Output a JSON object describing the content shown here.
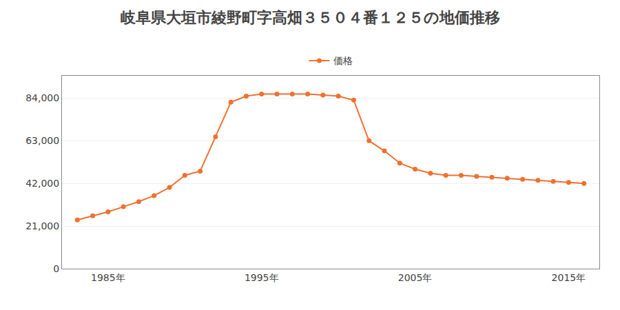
{
  "chart_data": {
    "type": "line",
    "title": "岐阜県大垣市綾野町字高畑３５０４番１２５の地価推移",
    "x": [
      1983,
      1984,
      1985,
      1986,
      1987,
      1988,
      1989,
      1990,
      1991,
      1992,
      1993,
      1994,
      1995,
      1996,
      1997,
      1998,
      1999,
      2000,
      2001,
      2002,
      2003,
      2004,
      2005,
      2006,
      2007,
      2008,
      2009,
      2010,
      2011,
      2012,
      2013,
      2014,
      2015,
      2016
    ],
    "series": [
      {
        "name": "価格",
        "color": "#f07030",
        "marker": "circle",
        "line_style": "solid",
        "values": [
          24000,
          26000,
          28000,
          30500,
          33000,
          36000,
          40000,
          46000,
          48000,
          65000,
          82000,
          85000,
          86000,
          86000,
          86000,
          86000,
          85500,
          85000,
          83000,
          63000,
          58000,
          52000,
          49000,
          47000,
          46000,
          46000,
          45500,
          45000,
          44500,
          44000,
          43500,
          43000,
          42500,
          42000
        ]
      }
    ],
    "xlim": [
      1982,
      2017
    ],
    "xticks": [
      {
        "value": 1985,
        "label": "1985年"
      },
      {
        "value": 1995,
        "label": "1995年"
      },
      {
        "value": 2005,
        "label": "2005年"
      },
      {
        "value": 2015,
        "label": "2015年"
      }
    ],
    "ylim": [
      0,
      95000
    ],
    "yticks": [
      0,
      {
        "value": 21000,
        "label": "21,000"
      },
      {
        "value": 42000,
        "label": "42,000"
      },
      {
        "value": 63000,
        "label": "63,000"
      },
      {
        "value": 84000,
        "label": "84,000"
      }
    ],
    "grid": "y",
    "legend": "top"
  }
}
